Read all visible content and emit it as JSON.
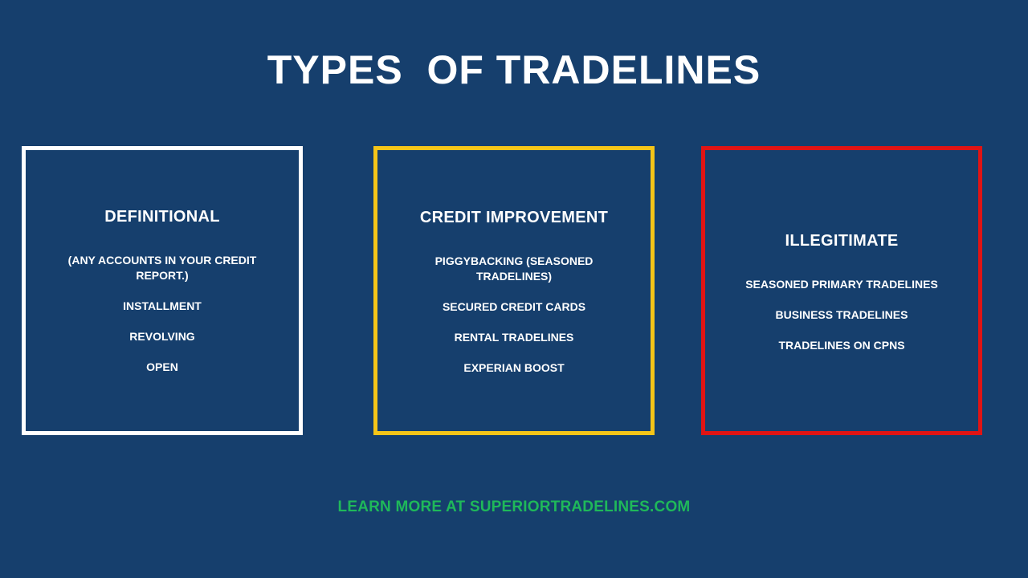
{
  "title": "TYPES  OF TRADELINES",
  "colors": {
    "background": "#163f6d",
    "card_definitional_border": "#ffffff",
    "card_credit_improvement_border": "#f5c518",
    "card_illegitimate_border": "#e01414",
    "footer_text": "#1fb85a"
  },
  "cards": [
    {
      "heading": "DEFINITIONAL",
      "items": [
        "(ANY ACCOUNTS IN YOUR CREDIT REPORT.)",
        "INSTALLMENT",
        "REVOLVING",
        "OPEN"
      ]
    },
    {
      "heading": "CREDIT IMPROVEMENT",
      "items": [
        "PIGGYBACKING (SEASONED TRADELINES)",
        "SECURED CREDIT CARDS",
        "RENTAL TRADELINES",
        "EXPERIAN BOOST"
      ]
    },
    {
      "heading": "ILLEGITIMATE",
      "items": [
        "SEASONED PRIMARY TRADELINES",
        "BUSINESS TRADELINES",
        "TRADELINES ON CPNS"
      ]
    }
  ],
  "footer": "LEARN MORE AT SUPERIORTRADELINES.COM"
}
